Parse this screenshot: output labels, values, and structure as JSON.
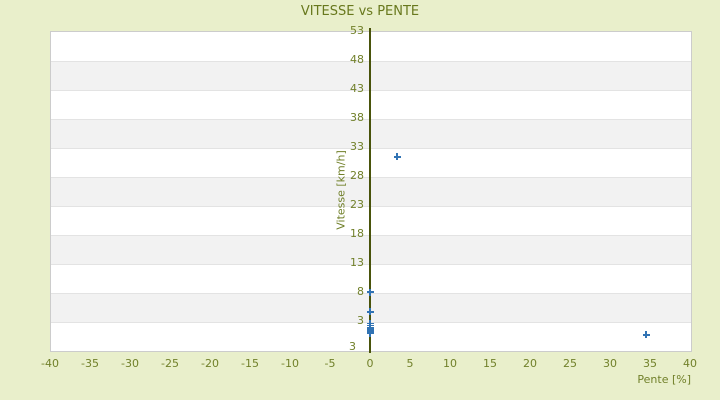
{
  "page": {
    "background": "#e9efcb"
  },
  "chart_data": {
    "type": "scatter",
    "title": "VITESSE vs PENTE",
    "xlabel": "Pente [%]",
    "ylabel": "Vitesse [km/h]",
    "x_ticks": [
      -40,
      -35,
      -30,
      -25,
      -20,
      -15,
      -10,
      -5,
      0,
      5,
      10,
      15,
      20,
      25,
      30,
      35,
      40
    ],
    "y_ticks": [
      53,
      48,
      43,
      38,
      33,
      28,
      23,
      18,
      13,
      8,
      3
    ],
    "y_axis_bottom_extra_label": "3",
    "xlim": [
      -40,
      40
    ],
    "ylim": [
      -2,
      53
    ],
    "grid": "horizontal-stripes",
    "legend": "none",
    "marker": "plus",
    "series": [
      {
        "name": "vitesse-vs-pente-points",
        "points": [
          {
            "x": 0,
            "y": 8.0
          },
          {
            "x": 0,
            "y": 4.6
          },
          {
            "x": 0,
            "y": 2.6
          },
          {
            "x": 0,
            "y": 2.2
          },
          {
            "x": 0,
            "y": 1.9
          },
          {
            "x": 0,
            "y": 1.6
          },
          {
            "x": 0,
            "y": 1.3
          },
          {
            "x": 0,
            "y": 0.9
          },
          {
            "x": 3.4,
            "y": 31.3
          },
          {
            "x": 34.5,
            "y": 0.6
          }
        ]
      }
    ]
  },
  "colors": {
    "background": "#e9efcb",
    "title_text": "#68781d",
    "tick_text": "#71802a",
    "stripe_light": "#ffffff",
    "stripe_dark": "#f2f2f2",
    "stripe_edge": "#e3e3e3",
    "plot_border": "#cccccc",
    "axis_line": "#49530b",
    "marker": "#3173b4"
  }
}
